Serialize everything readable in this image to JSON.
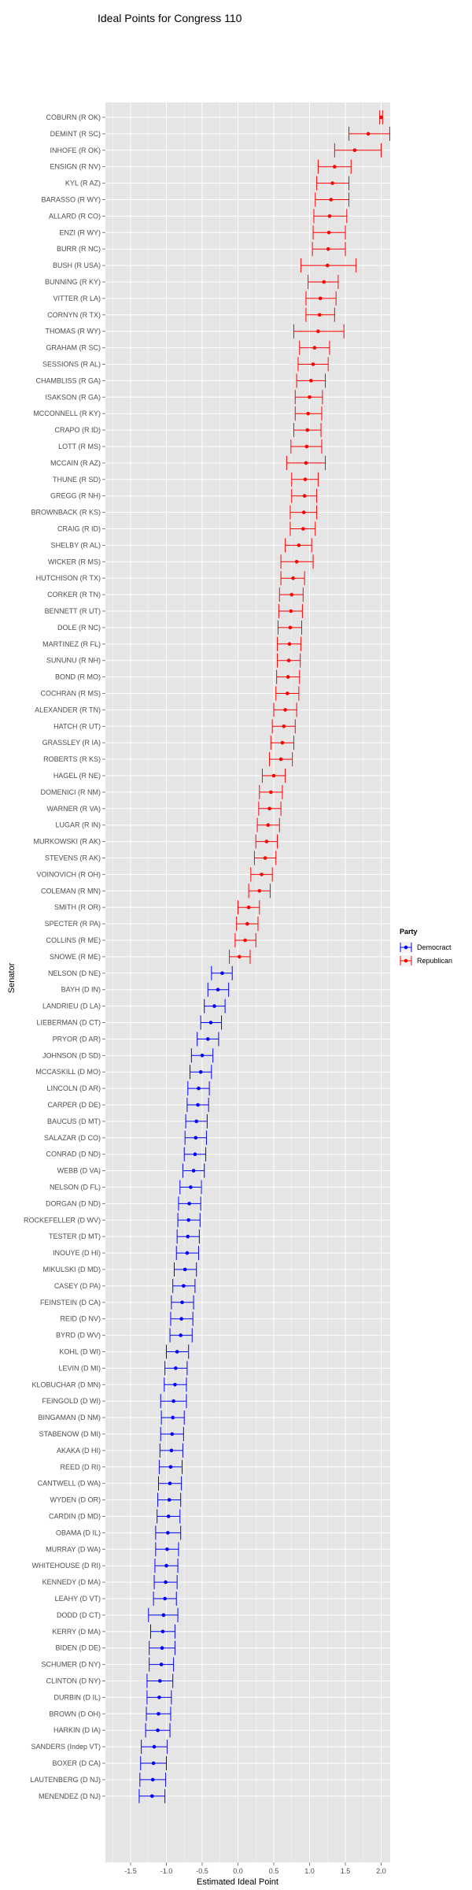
{
  "chart_data": {
    "type": "scatter",
    "title": "Ideal Points for Congress 110",
    "xlabel": "Estimated Ideal Point",
    "ylabel": "Senator",
    "xlim": [
      -1.8,
      2.2
    ],
    "xticks": [
      -1.5,
      -1.0,
      -0.5,
      0.0,
      0.5,
      1.0,
      1.5,
      2.0
    ],
    "xtick_labels": [
      "-1.5",
      "-1.0",
      "-0.5",
      "0.0",
      "0.5",
      "1.0",
      "1.5",
      "2.0"
    ],
    "grid": true,
    "legend": {
      "title": "Party",
      "position": "right",
      "entries": [
        "Democract",
        "Republican"
      ]
    },
    "colors": {
      "Democract": "#0000ff",
      "Republican": "#ff0000",
      "panel": "#e5e5e5",
      "grid": "#ffffff"
    },
    "senators": [
      {
        "name": "COBURN (R OK)",
        "party": "Republican",
        "mean": 2.0,
        "lower": 1.98,
        "upper": 2.02
      },
      {
        "name": "DEMINT (R SC)",
        "party": "Republican",
        "mean": 1.82,
        "lower": 1.55,
        "upper": 2.12
      },
      {
        "name": "INHOFE (R OK)",
        "party": "Republican",
        "mean": 1.63,
        "lower": 1.35,
        "upper": 2.0
      },
      {
        "name": "ENSIGN (R NV)",
        "party": "Republican",
        "mean": 1.35,
        "lower": 1.12,
        "upper": 1.58
      },
      {
        "name": "KYL (R AZ)",
        "party": "Republican",
        "mean": 1.32,
        "lower": 1.1,
        "upper": 1.55
      },
      {
        "name": "BARASSO (R WY)",
        "party": "Republican",
        "mean": 1.3,
        "lower": 1.08,
        "upper": 1.55
      },
      {
        "name": "ALLARD (R CO)",
        "party": "Republican",
        "mean": 1.28,
        "lower": 1.06,
        "upper": 1.52
      },
      {
        "name": "ENZI (R WY)",
        "party": "Republican",
        "mean": 1.27,
        "lower": 1.05,
        "upper": 1.5
      },
      {
        "name": "BURR (R NC)",
        "party": "Republican",
        "mean": 1.26,
        "lower": 1.04,
        "upper": 1.5
      },
      {
        "name": "BUSH (R USA)",
        "party": "Republican",
        "mean": 1.25,
        "lower": 0.88,
        "upper": 1.65
      },
      {
        "name": "BUNNING (R KY)",
        "party": "Republican",
        "mean": 1.2,
        "lower": 0.98,
        "upper": 1.4
      },
      {
        "name": "VITTER (R LA)",
        "party": "Republican",
        "mean": 1.15,
        "lower": 0.95,
        "upper": 1.37
      },
      {
        "name": "CORNYN (R TX)",
        "party": "Republican",
        "mean": 1.14,
        "lower": 0.95,
        "upper": 1.35
      },
      {
        "name": "THOMAS (R WY)",
        "party": "Republican",
        "mean": 1.12,
        "lower": 0.78,
        "upper": 1.48
      },
      {
        "name": "GRAHAM (R SC)",
        "party": "Republican",
        "mean": 1.07,
        "lower": 0.86,
        "upper": 1.28
      },
      {
        "name": "SESSIONS (R AL)",
        "party": "Republican",
        "mean": 1.05,
        "lower": 0.84,
        "upper": 1.26
      },
      {
        "name": "CHAMBLISS (R GA)",
        "party": "Republican",
        "mean": 1.02,
        "lower": 0.82,
        "upper": 1.22
      },
      {
        "name": "ISAKSON (R GA)",
        "party": "Republican",
        "mean": 1.0,
        "lower": 0.8,
        "upper": 1.18
      },
      {
        "name": "MCCONNELL (R KY)",
        "party": "Republican",
        "mean": 0.98,
        "lower": 0.8,
        "upper": 1.17
      },
      {
        "name": "CRAPO (R ID)",
        "party": "Republican",
        "mean": 0.97,
        "lower": 0.78,
        "upper": 1.16
      },
      {
        "name": "LOTT (R MS)",
        "party": "Republican",
        "mean": 0.96,
        "lower": 0.74,
        "upper": 1.17
      },
      {
        "name": "MCCAIN (R AZ)",
        "party": "Republican",
        "mean": 0.95,
        "lower": 0.68,
        "upper": 1.22
      },
      {
        "name": "THUNE (R SD)",
        "party": "Republican",
        "mean": 0.94,
        "lower": 0.75,
        "upper": 1.12
      },
      {
        "name": "GREGG (R NH)",
        "party": "Republican",
        "mean": 0.93,
        "lower": 0.75,
        "upper": 1.1
      },
      {
        "name": "BROWNBACK (R KS)",
        "party": "Republican",
        "mean": 0.92,
        "lower": 0.73,
        "upper": 1.1
      },
      {
        "name": "CRAIG (R ID)",
        "party": "Republican",
        "mean": 0.91,
        "lower": 0.73,
        "upper": 1.08
      },
      {
        "name": "SHELBY (R AL)",
        "party": "Republican",
        "mean": 0.85,
        "lower": 0.66,
        "upper": 1.03
      },
      {
        "name": "WICKER (R MS)",
        "party": "Republican",
        "mean": 0.82,
        "lower": 0.6,
        "upper": 1.05
      },
      {
        "name": "HUTCHISON (R TX)",
        "party": "Republican",
        "mean": 0.77,
        "lower": 0.6,
        "upper": 0.93
      },
      {
        "name": "CORKER (R TN)",
        "party": "Republican",
        "mean": 0.75,
        "lower": 0.58,
        "upper": 0.91
      },
      {
        "name": "BENNETT (R UT)",
        "party": "Republican",
        "mean": 0.74,
        "lower": 0.57,
        "upper": 0.9
      },
      {
        "name": "DOLE (R NC)",
        "party": "Republican",
        "mean": 0.73,
        "lower": 0.56,
        "upper": 0.89
      },
      {
        "name": "MARTINEZ (R FL)",
        "party": "Republican",
        "mean": 0.72,
        "lower": 0.55,
        "upper": 0.88
      },
      {
        "name": "SUNUNU (R NH)",
        "party": "Republican",
        "mean": 0.71,
        "lower": 0.55,
        "upper": 0.87
      },
      {
        "name": "BOND (R MO)",
        "party": "Republican",
        "mean": 0.7,
        "lower": 0.54,
        "upper": 0.86
      },
      {
        "name": "COCHRAN (R MS)",
        "party": "Republican",
        "mean": 0.69,
        "lower": 0.53,
        "upper": 0.85
      },
      {
        "name": "ALEXANDER (R TN)",
        "party": "Republican",
        "mean": 0.66,
        "lower": 0.5,
        "upper": 0.82
      },
      {
        "name": "HATCH (R UT)",
        "party": "Republican",
        "mean": 0.64,
        "lower": 0.48,
        "upper": 0.8
      },
      {
        "name": "GRASSLEY (R IA)",
        "party": "Republican",
        "mean": 0.62,
        "lower": 0.46,
        "upper": 0.78
      },
      {
        "name": "ROBERTS (R KS)",
        "party": "Republican",
        "mean": 0.6,
        "lower": 0.44,
        "upper": 0.76
      },
      {
        "name": "HAGEL (R NE)",
        "party": "Republican",
        "mean": 0.5,
        "lower": 0.34,
        "upper": 0.66
      },
      {
        "name": "DOMENICI (R NM)",
        "party": "Republican",
        "mean": 0.46,
        "lower": 0.3,
        "upper": 0.62
      },
      {
        "name": "WARNER (R VA)",
        "party": "Republican",
        "mean": 0.44,
        "lower": 0.29,
        "upper": 0.6
      },
      {
        "name": "LUGAR (R IN)",
        "party": "Republican",
        "mean": 0.42,
        "lower": 0.27,
        "upper": 0.58
      },
      {
        "name": "MURKOWSKI (R AK)",
        "party": "Republican",
        "mean": 0.4,
        "lower": 0.25,
        "upper": 0.55
      },
      {
        "name": "STEVENS (R AK)",
        "party": "Republican",
        "mean": 0.38,
        "lower": 0.23,
        "upper": 0.53
      },
      {
        "name": "VOINOVICH (R OH)",
        "party": "Republican",
        "mean": 0.33,
        "lower": 0.18,
        "upper": 0.48
      },
      {
        "name": "COLEMAN (R MN)",
        "party": "Republican",
        "mean": 0.3,
        "lower": 0.15,
        "upper": 0.45
      },
      {
        "name": "SMITH (R OR)",
        "party": "Republican",
        "mean": 0.15,
        "lower": 0.0,
        "upper": 0.3
      },
      {
        "name": "SPECTER (R PA)",
        "party": "Republican",
        "mean": 0.13,
        "lower": -0.02,
        "upper": 0.28
      },
      {
        "name": "COLLINS (R ME)",
        "party": "Republican",
        "mean": 0.1,
        "lower": -0.04,
        "upper": 0.25
      },
      {
        "name": "SNOWE (R ME)",
        "party": "Republican",
        "mean": 0.02,
        "lower": -0.12,
        "upper": 0.17
      },
      {
        "name": "NELSON (D NE)",
        "party": "Democract",
        "mean": -0.22,
        "lower": -0.37,
        "upper": -0.08
      },
      {
        "name": "BAYH (D IN)",
        "party": "Democract",
        "mean": -0.28,
        "lower": -0.42,
        "upper": -0.13
      },
      {
        "name": "LANDRIEU (D LA)",
        "party": "Democract",
        "mean": -0.33,
        "lower": -0.47,
        "upper": -0.18
      },
      {
        "name": "LIEBERMAN (D CT)",
        "party": "Democract",
        "mean": -0.38,
        "lower": -0.52,
        "upper": -0.23
      },
      {
        "name": "PRYOR (D AR)",
        "party": "Democract",
        "mean": -0.42,
        "lower": -0.57,
        "upper": -0.27
      },
      {
        "name": "JOHNSON (D SD)",
        "party": "Democract",
        "mean": -0.5,
        "lower": -0.65,
        "upper": -0.35
      },
      {
        "name": "MCCASKILL (D MO)",
        "party": "Democract",
        "mean": -0.52,
        "lower": -0.67,
        "upper": -0.37
      },
      {
        "name": "LINCOLN (D AR)",
        "party": "Democract",
        "mean": -0.55,
        "lower": -0.7,
        "upper": -0.4
      },
      {
        "name": "CARPER (D DE)",
        "party": "Democract",
        "mean": -0.56,
        "lower": -0.71,
        "upper": -0.41
      },
      {
        "name": "BAUCUS (D MT)",
        "party": "Democract",
        "mean": -0.58,
        "lower": -0.73,
        "upper": -0.43
      },
      {
        "name": "SALAZAR (D CO)",
        "party": "Democract",
        "mean": -0.59,
        "lower": -0.74,
        "upper": -0.44
      },
      {
        "name": "CONRAD (D ND)",
        "party": "Democract",
        "mean": -0.6,
        "lower": -0.75,
        "upper": -0.45
      },
      {
        "name": "WEBB (D VA)",
        "party": "Democract",
        "mean": -0.62,
        "lower": -0.77,
        "upper": -0.47
      },
      {
        "name": "NELSON (D FL)",
        "party": "Democract",
        "mean": -0.66,
        "lower": -0.81,
        "upper": -0.51
      },
      {
        "name": "DORGAN (D ND)",
        "party": "Democract",
        "mean": -0.68,
        "lower": -0.83,
        "upper": -0.52
      },
      {
        "name": "ROCKEFELLER (D WV)",
        "party": "Democract",
        "mean": -0.69,
        "lower": -0.84,
        "upper": -0.53
      },
      {
        "name": "TESTER (D MT)",
        "party": "Democract",
        "mean": -0.7,
        "lower": -0.85,
        "upper": -0.54
      },
      {
        "name": "INOUYE (D HI)",
        "party": "Democract",
        "mean": -0.71,
        "lower": -0.86,
        "upper": -0.55
      },
      {
        "name": "MIKULSKI (D MD)",
        "party": "Democract",
        "mean": -0.74,
        "lower": -0.89,
        "upper": -0.58
      },
      {
        "name": "CASEY (D PA)",
        "party": "Democract",
        "mean": -0.76,
        "lower": -0.91,
        "upper": -0.6
      },
      {
        "name": "FEINSTEIN (D CA)",
        "party": "Democract",
        "mean": -0.78,
        "lower": -0.93,
        "upper": -0.62
      },
      {
        "name": "REID (D NV)",
        "party": "Democract",
        "mean": -0.79,
        "lower": -0.94,
        "upper": -0.63
      },
      {
        "name": "BYRD (D WV)",
        "party": "Democract",
        "mean": -0.8,
        "lower": -0.95,
        "upper": -0.64
      },
      {
        "name": "KOHL (D WI)",
        "party": "Democract",
        "mean": -0.85,
        "lower": -1.0,
        "upper": -0.69
      },
      {
        "name": "LEVIN (D MI)",
        "party": "Democract",
        "mean": -0.87,
        "lower": -1.02,
        "upper": -0.71
      },
      {
        "name": "KLOBUCHAR (D MN)",
        "party": "Democract",
        "mean": -0.88,
        "lower": -1.03,
        "upper": -0.72
      },
      {
        "name": "FEINGOLD (D WI)",
        "party": "Democract",
        "mean": -0.9,
        "lower": -1.08,
        "upper": -0.72
      },
      {
        "name": "BINGAMAN (D NM)",
        "party": "Democract",
        "mean": -0.91,
        "lower": -1.07,
        "upper": -0.75
      },
      {
        "name": "STABENOW (D MI)",
        "party": "Democract",
        "mean": -0.92,
        "lower": -1.08,
        "upper": -0.76
      },
      {
        "name": "AKAKA (D HI)",
        "party": "Democract",
        "mean": -0.93,
        "lower": -1.09,
        "upper": -0.77
      },
      {
        "name": "REED (D RI)",
        "party": "Democract",
        "mean": -0.94,
        "lower": -1.1,
        "upper": -0.78
      },
      {
        "name": "CANTWELL (D WA)",
        "party": "Democract",
        "mean": -0.95,
        "lower": -1.11,
        "upper": -0.79
      },
      {
        "name": "WYDEN (D OR)",
        "party": "Democract",
        "mean": -0.96,
        "lower": -1.12,
        "upper": -0.8
      },
      {
        "name": "CARDIN (D MD)",
        "party": "Democract",
        "mean": -0.97,
        "lower": -1.13,
        "upper": -0.81
      },
      {
        "name": "OBAMA (D IL)",
        "party": "Democract",
        "mean": -0.98,
        "lower": -1.15,
        "upper": -0.8
      },
      {
        "name": "MURRAY (D WA)",
        "party": "Democract",
        "mean": -0.99,
        "lower": -1.15,
        "upper": -0.83
      },
      {
        "name": "WHITEHOUSE (D RI)",
        "party": "Democract",
        "mean": -1.0,
        "lower": -1.16,
        "upper": -0.84
      },
      {
        "name": "KENNEDY (D MA)",
        "party": "Democract",
        "mean": -1.01,
        "lower": -1.17,
        "upper": -0.85
      },
      {
        "name": "LEAHY (D VT)",
        "party": "Democract",
        "mean": -1.02,
        "lower": -1.18,
        "upper": -0.86
      },
      {
        "name": "DODD (D CT)",
        "party": "Democract",
        "mean": -1.04,
        "lower": -1.25,
        "upper": -0.84
      },
      {
        "name": "KERRY (D MA)",
        "party": "Democract",
        "mean": -1.05,
        "lower": -1.22,
        "upper": -0.88
      },
      {
        "name": "BIDEN (D DE)",
        "party": "Democract",
        "mean": -1.06,
        "lower": -1.24,
        "upper": -0.88
      },
      {
        "name": "SCHUMER (D NY)",
        "party": "Democract",
        "mean": -1.07,
        "lower": -1.24,
        "upper": -0.9
      },
      {
        "name": "CLINTON (D NY)",
        "party": "Democract",
        "mean": -1.09,
        "lower": -1.27,
        "upper": -0.91
      },
      {
        "name": "DURBIN (D IL)",
        "party": "Democract",
        "mean": -1.1,
        "lower": -1.27,
        "upper": -0.93
      },
      {
        "name": "BROWN (D OH)",
        "party": "Democract",
        "mean": -1.11,
        "lower": -1.28,
        "upper": -0.94
      },
      {
        "name": "HARKIN (D IA)",
        "party": "Democract",
        "mean": -1.12,
        "lower": -1.29,
        "upper": -0.95
      },
      {
        "name": "SANDERS (Indep VT)",
        "party": "Democract",
        "mean": -1.17,
        "lower": -1.35,
        "upper": -0.99
      },
      {
        "name": "BOXER (D CA)",
        "party": "Democract",
        "mean": -1.18,
        "lower": -1.36,
        "upper": -1.0
      },
      {
        "name": "LAUTENBERG (D NJ)",
        "party": "Democract",
        "mean": -1.19,
        "lower": -1.37,
        "upper": -1.01
      },
      {
        "name": "MENENDEZ (D NJ)",
        "party": "Democract",
        "mean": -1.2,
        "lower": -1.38,
        "upper": -1.02
      }
    ]
  }
}
